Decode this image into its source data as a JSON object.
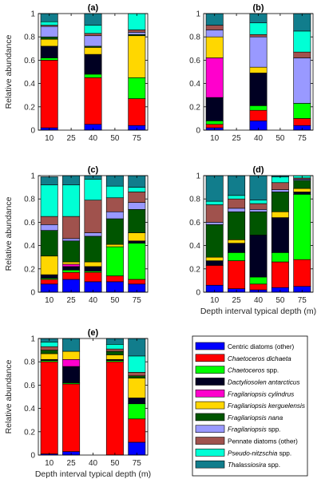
{
  "chart_data": [
    {
      "type": "bar",
      "stacked": true,
      "title": "(a)",
      "categories": [
        "10",
        "25",
        "40",
        "50",
        "75"
      ],
      "ylabel": "Relative abundance",
      "xlabel": "",
      "ylim": [
        0,
        1
      ],
      "yticks": [
        "0",
        "0.2",
        "0.4",
        "0.6",
        "0.8",
        "1"
      ],
      "series": [
        {
          "name": "Centric diatoms (other)",
          "values": [
            0.02,
            null,
            0.05,
            null,
            0.04
          ]
        },
        {
          "name": "Chaetoceros dichaeta",
          "values": [
            0.58,
            null,
            0.4,
            null,
            0.23
          ]
        },
        {
          "name": "Chaetoceros spp.",
          "values": [
            0.02,
            null,
            0.03,
            null,
            0.18
          ]
        },
        {
          "name": "Dactyliosolen antarcticus",
          "values": [
            0.1,
            null,
            0.17,
            null,
            0.0
          ]
        },
        {
          "name": "Fragilariopsis cylindrus",
          "values": [
            0.0,
            null,
            0.0,
            null,
            0.0
          ]
        },
        {
          "name": "Fragilariopsis kerguelensis",
          "values": [
            0.06,
            null,
            0.06,
            null,
            0.36
          ]
        },
        {
          "name": "Fragilariopsis nana",
          "values": [
            0.02,
            null,
            0.01,
            null,
            0.01
          ]
        },
        {
          "name": "Fragilariopsis spp.",
          "values": [
            0.09,
            null,
            0.09,
            null,
            0.02
          ]
        },
        {
          "name": "Pennate diatoms (other)",
          "values": [
            0.01,
            null,
            0.02,
            null,
            0.02
          ]
        },
        {
          "name": "Pseudo-nitzschia spp.",
          "values": [
            0.03,
            null,
            0.07,
            null,
            0.14
          ]
        },
        {
          "name": "Thalassiosira spp.",
          "values": [
            0.07,
            null,
            0.1,
            null,
            0.0
          ]
        }
      ]
    },
    {
      "type": "bar",
      "stacked": true,
      "title": "(b)",
      "categories": [
        "10",
        "25",
        "40",
        "50",
        "75"
      ],
      "ylabel": "",
      "xlabel": "",
      "ylim": [
        0,
        1
      ],
      "yticks": [
        "0",
        "0.2",
        "0.4",
        "0.6",
        "0.8",
        "1"
      ],
      "series": [
        {
          "name": "Centric diatoms (other)",
          "values": [
            0.02,
            null,
            0.08,
            null,
            0.04
          ]
        },
        {
          "name": "Chaetoceros dichaeta",
          "values": [
            0.03,
            null,
            0.09,
            null,
            0.06
          ]
        },
        {
          "name": "Chaetoceros spp.",
          "values": [
            0.03,
            null,
            0.04,
            null,
            0.13
          ]
        },
        {
          "name": "Dactyliosolen antarcticus",
          "values": [
            0.2,
            null,
            0.28,
            null,
            0.0
          ]
        },
        {
          "name": "Fragilariopsis cylindrus",
          "values": [
            0.34,
            null,
            0.0,
            null,
            0.0
          ]
        },
        {
          "name": "Fragilariopsis kerguelensis",
          "values": [
            0.18,
            null,
            0.05,
            null,
            0.0
          ]
        },
        {
          "name": "Fragilariopsis nana",
          "values": [
            0.0,
            null,
            0.0,
            null,
            0.0
          ]
        },
        {
          "name": "Fragilariopsis spp.",
          "values": [
            0.06,
            null,
            0.26,
            null,
            0.39
          ]
        },
        {
          "name": "Pennate diatoms (other)",
          "values": [
            0.04,
            null,
            0.02,
            null,
            0.05
          ]
        },
        {
          "name": "Pseudo-nitzschia spp.",
          "values": [
            0.0,
            null,
            0.1,
            null,
            0.18
          ]
        },
        {
          "name": "Thalassiosira spp.",
          "values": [
            0.1,
            null,
            0.08,
            null,
            0.15
          ]
        }
      ]
    },
    {
      "type": "bar",
      "stacked": true,
      "title": "(c)",
      "categories": [
        "10",
        "25",
        "40",
        "50",
        "75"
      ],
      "ylabel": "Relative abundance",
      "xlabel": "",
      "ylim": [
        0,
        1
      ],
      "yticks": [
        "0",
        "0.2",
        "0.4",
        "0.6",
        "0.8",
        "1"
      ],
      "series": [
        {
          "name": "Centric diatoms (other)",
          "values": [
            0.07,
            0.11,
            0.09,
            0.09,
            0.07
          ]
        },
        {
          "name": "Chaetoceros dichaeta",
          "values": [
            0.04,
            0.06,
            0.08,
            0.05,
            0.04
          ]
        },
        {
          "name": "Chaetoceros spp.",
          "values": [
            0.01,
            0.02,
            0.01,
            0.25,
            0.31
          ]
        },
        {
          "name": "Dactyliosolen antarcticus",
          "values": [
            0.03,
            0.03,
            0.04,
            0.0,
            0.02
          ]
        },
        {
          "name": "Fragilariopsis cylindrus",
          "values": [
            0.0,
            0.02,
            0.0,
            0.0,
            0.0
          ]
        },
        {
          "name": "Fragilariopsis kerguelensis",
          "values": [
            0.16,
            0.02,
            0.04,
            0.02,
            0.07
          ]
        },
        {
          "name": "Fragilariopsis nana",
          "values": [
            0.22,
            0.18,
            0.22,
            0.22,
            0.2
          ]
        },
        {
          "name": "Fragilariopsis spp.",
          "values": [
            0.05,
            0.02,
            0.03,
            0.06,
            0.06
          ]
        },
        {
          "name": "Pennate diatoms (other)",
          "values": [
            0.07,
            0.19,
            0.28,
            0.12,
            0.09
          ]
        },
        {
          "name": "Pseudo-nitzschia spp.",
          "values": [
            0.27,
            0.27,
            0.18,
            0.1,
            0.04
          ]
        },
        {
          "name": "Thalassiosira spp.",
          "values": [
            0.07,
            0.08,
            0.03,
            0.09,
            0.1
          ]
        }
      ]
    },
    {
      "type": "bar",
      "stacked": true,
      "title": "(d)",
      "categories": [
        "10",
        "25",
        "40",
        "50",
        "75"
      ],
      "ylabel": "",
      "xlabel": "Depth interval typical depth (m)",
      "ylim": [
        0,
        1
      ],
      "yticks": [
        "0",
        "0.2",
        "0.4",
        "0.6",
        "0.8",
        "1"
      ],
      "series": [
        {
          "name": "Centric diatoms (other)",
          "values": [
            0.06,
            0.03,
            0.02,
            0.04,
            0.05
          ]
        },
        {
          "name": "Chaetoceros dichaeta",
          "values": [
            0.17,
            0.24,
            0.05,
            0.22,
            0.23
          ]
        },
        {
          "name": "Chaetoceros spp.",
          "values": [
            0.0,
            0.07,
            0.06,
            0.08,
            0.56
          ]
        },
        {
          "name": "Dactyliosolen antarcticus",
          "values": [
            0.04,
            0.08,
            0.36,
            0.3,
            0.02
          ]
        },
        {
          "name": "Fragilariopsis cylindrus",
          "values": [
            0.0,
            0.0,
            0.0,
            0.0,
            0.0
          ]
        },
        {
          "name": "Fragilariopsis kerguelensis",
          "values": [
            0.03,
            0.03,
            0.0,
            0.05,
            0.03
          ]
        },
        {
          "name": "Fragilariopsis nana",
          "values": [
            0.28,
            0.24,
            0.2,
            0.17,
            0.07
          ]
        },
        {
          "name": "Fragilariopsis spp.",
          "values": [
            0.02,
            0.03,
            0.02,
            0.02,
            0.01
          ]
        },
        {
          "name": "Pennate diatoms (other)",
          "values": [
            0.15,
            0.08,
            0.05,
            0.06,
            0.01
          ]
        },
        {
          "name": "Pseudo-nitzschia spp.",
          "values": [
            0.03,
            0.03,
            0.03,
            0.05,
            0.02
          ]
        },
        {
          "name": "Thalassiosira spp.",
          "values": [
            0.22,
            0.17,
            0.21,
            0.01,
            0.0
          ]
        }
      ]
    },
    {
      "type": "bar",
      "stacked": true,
      "title": "(e)",
      "categories": [
        "10",
        "25",
        "40",
        "50",
        "75"
      ],
      "ylabel": "Relative abundance",
      "xlabel": "Depth interval typical depth (m)",
      "ylim": [
        0,
        1
      ],
      "yticks": [
        "0",
        "0.2",
        "0.4",
        "0.6",
        "0.8",
        "1"
      ],
      "series": [
        {
          "name": "Centric diatoms (other)",
          "values": [
            0.01,
            0.03,
            null,
            0.0,
            0.11
          ]
        },
        {
          "name": "Chaetoceros dichaeta",
          "values": [
            0.79,
            0.58,
            null,
            0.8,
            0.2
          ]
        },
        {
          "name": "Chaetoceros spp.",
          "values": [
            0.01,
            0.01,
            null,
            0.01,
            0.13
          ]
        },
        {
          "name": "Dactyliosolen antarcticus",
          "values": [
            0.01,
            0.14,
            null,
            0.01,
            0.05
          ]
        },
        {
          "name": "Fragilariopsis cylindrus",
          "values": [
            0.0,
            0.06,
            null,
            0.0,
            0.0
          ]
        },
        {
          "name": "Fragilariopsis kerguelensis",
          "values": [
            0.05,
            0.07,
            null,
            0.04,
            0.17
          ]
        },
        {
          "name": "Fragilariopsis nana",
          "values": [
            0.03,
            0.0,
            null,
            0.03,
            0.02
          ]
        },
        {
          "name": "Fragilariopsis spp.",
          "values": [
            0.0,
            0.0,
            null,
            0.0,
            0.0
          ]
        },
        {
          "name": "Pennate diatoms (other)",
          "values": [
            0.03,
            0.0,
            null,
            0.02,
            0.03
          ]
        },
        {
          "name": "Pseudo-nitzschia spp.",
          "values": [
            0.04,
            0.0,
            null,
            0.04,
            0.14
          ]
        },
        {
          "name": "Thalassiosira spp.",
          "values": [
            0.03,
            0.11,
            null,
            0.05,
            0.15
          ]
        }
      ]
    }
  ],
  "legend": {
    "position": "bottom-right",
    "items": [
      {
        "label": "Centric diatoms (other)",
        "italic_part": "",
        "rest": "Centric diatoms (other)",
        "color": "#0000ff"
      },
      {
        "label": "Chaetoceros dichaeta",
        "italic_part": "Chaetoceros dichaeta",
        "rest": "",
        "color": "#ff0000"
      },
      {
        "label": "Chaetoceros spp.",
        "italic_part": "Chaetoceros",
        "rest": " spp.",
        "color": "#00ff00"
      },
      {
        "label": "Dactyliosolen antarcticus",
        "italic_part": "Dactyliosolen antarcticus",
        "rest": "",
        "color": "#000022"
      },
      {
        "label": "Fragilariopsis cylindrus",
        "italic_part": "Fragilariopsis cylindrus",
        "rest": "",
        "color": "#ff00cc"
      },
      {
        "label": "Fragilariopsis kerguelensis",
        "italic_part": "Fragilariopsis kerguelensis",
        "rest": "",
        "color": "#ffd700"
      },
      {
        "label": "Fragilariopsis nana",
        "italic_part": "Fragilariopsis nana",
        "rest": "",
        "color": "#005500"
      },
      {
        "label": "Fragilariopsis spp.",
        "italic_part": "Fragilariopsis",
        "rest": " spp.",
        "color": "#9999ff"
      },
      {
        "label": "Pennate diatoms (other)",
        "italic_part": "",
        "rest": "Pennate diatoms (other)",
        "color": "#a0524d"
      },
      {
        "label": "Pseudo-nitzschia spp.",
        "italic_part": "Pseudo-nitzschia",
        "rest": " spp.",
        "color": "#00ffd5"
      },
      {
        "label": "Thalassiosira spp.",
        "italic_part": "Thalassiosira",
        "rest": " spp.",
        "color": "#117d8c"
      }
    ]
  }
}
